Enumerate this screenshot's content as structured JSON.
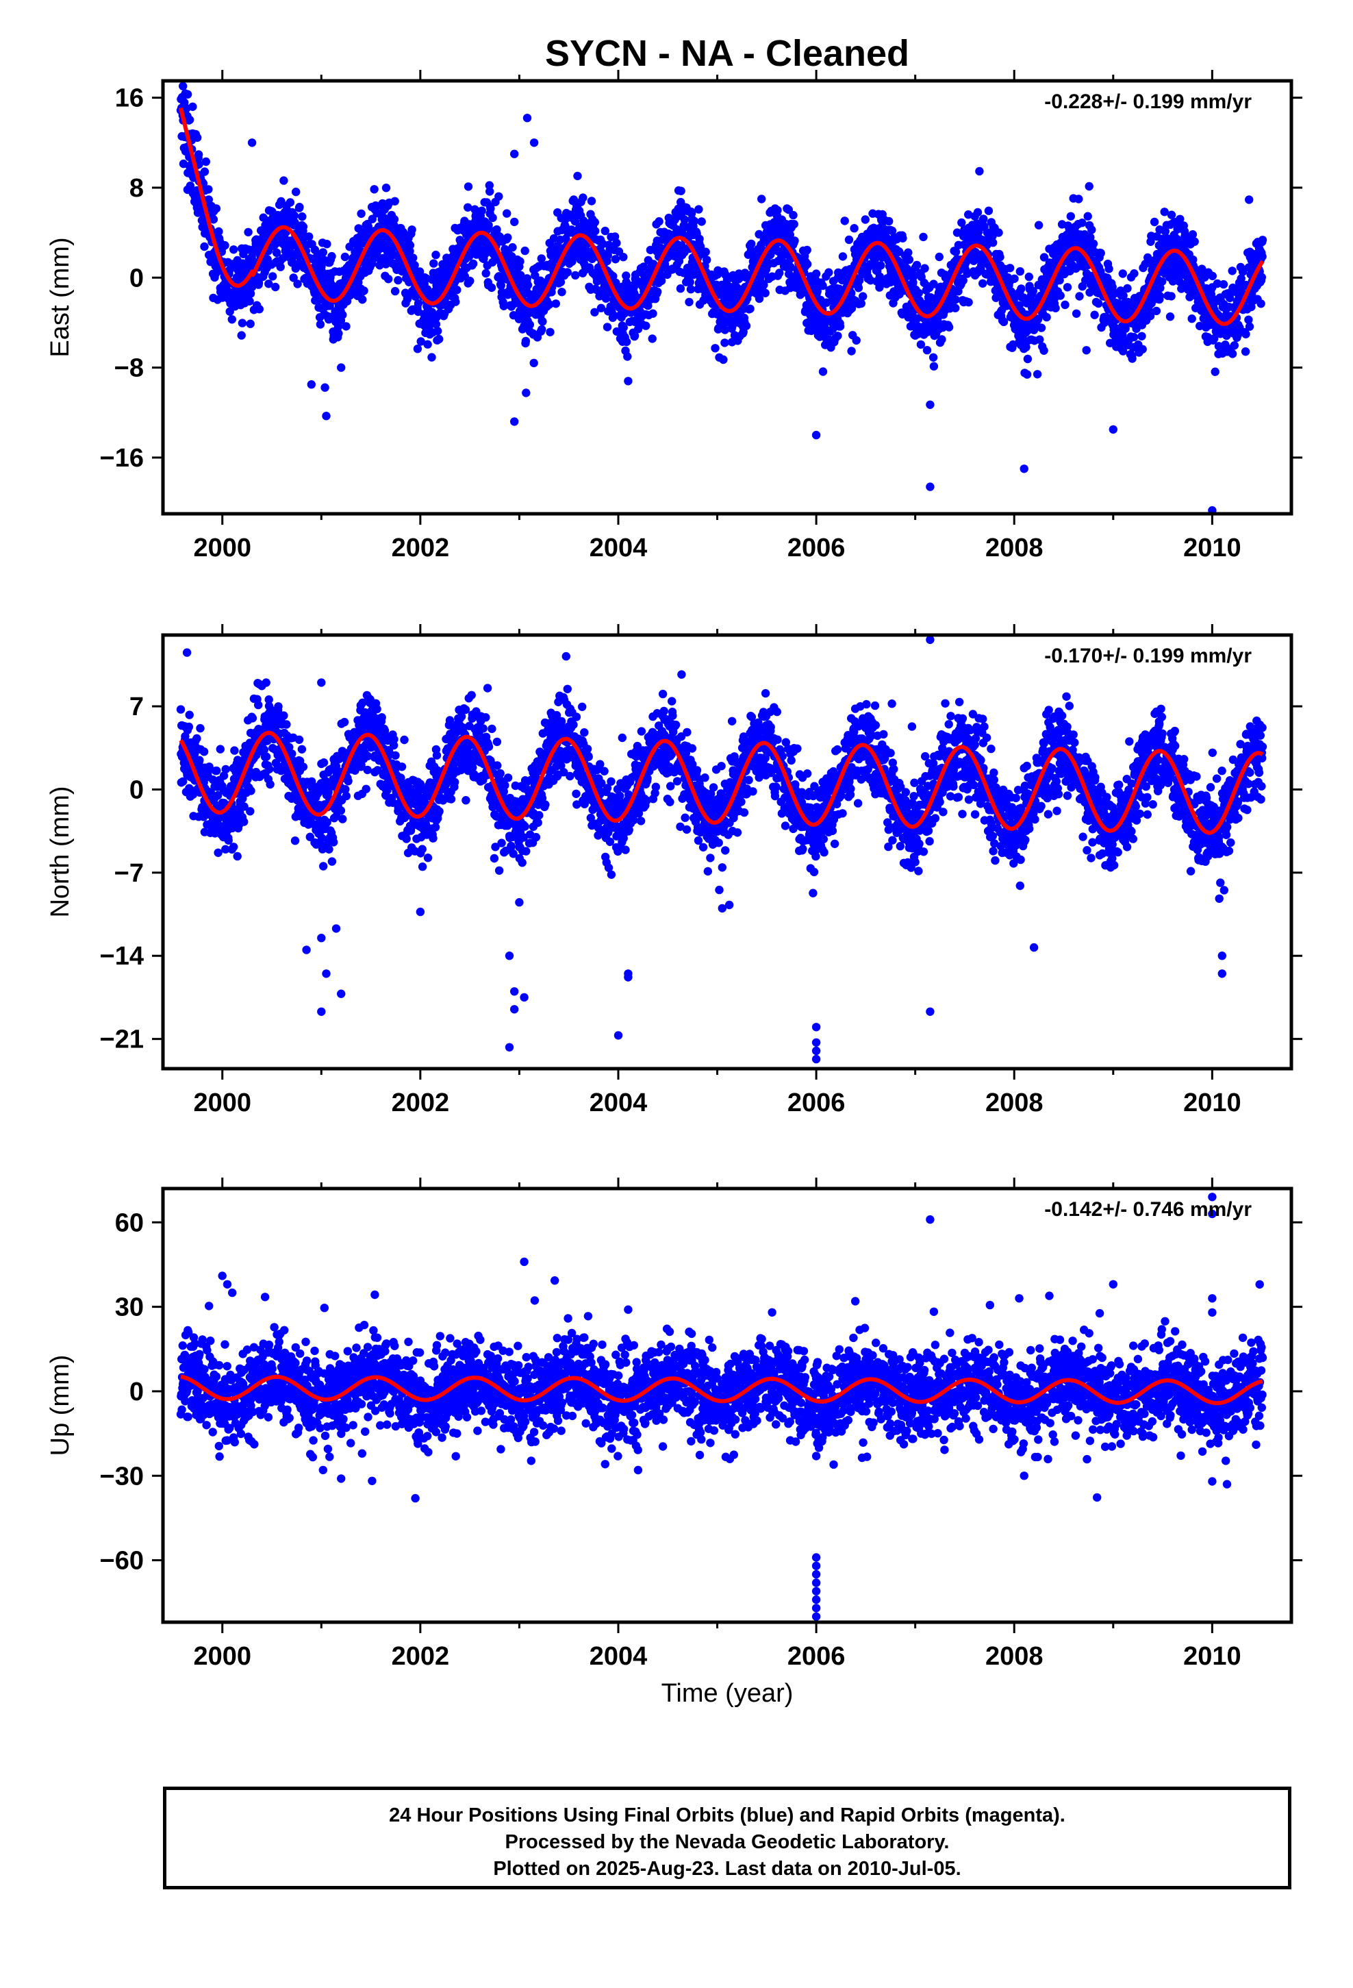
{
  "colors": {
    "data": "#0000ff",
    "model": "#ff0000",
    "axes": "#000000"
  },
  "chart_data": {
    "type": "scatter",
    "title": "SYCN  - NA - Cleaned",
    "xlabel": "Time (year)",
    "xlim": [
      1999.4,
      2010.8
    ],
    "xticks": [
      2000,
      2002,
      2004,
      2006,
      2008,
      2010
    ],
    "xtick_labels": [
      "2000",
      "2002",
      "2004",
      "2006",
      "2008",
      "2010"
    ],
    "data_range": [
      1999.58,
      2010.51
    ],
    "panels": [
      {
        "component": "east",
        "ylabel": "East (mm)",
        "ylim": [
          -21,
          17.5
        ],
        "yticks": [
          16,
          8,
          0,
          -8,
          -16
        ],
        "ytick_labels": [
          "16",
          "8",
          "0",
          "−8",
          "−16"
        ],
        "rate": "-0.228+/- 0.199 mm/yr",
        "model": {
          "offset": 0.25,
          "trend": -0.228,
          "amplitude": 3.2,
          "phase_year": 0.62,
          "early_bias": 10.5
        },
        "outliers": [
          [
            1999.65,
            16.3
          ],
          [
            1999.7,
            15.2
          ],
          [
            2000.3,
            12.0
          ],
          [
            2002.95,
            11.0
          ],
          [
            2003.08,
            14.2
          ],
          [
            2003.15,
            12.0
          ],
          [
            2001.05,
            -12.3
          ],
          [
            2000.9,
            -9.5
          ],
          [
            2001.2,
            -8.0
          ],
          [
            2002.95,
            -12.8
          ],
          [
            2004.1,
            -9.2
          ],
          [
            2006.0,
            -14.0
          ],
          [
            2007.15,
            -18.6
          ],
          [
            2008.1,
            -17.0
          ],
          [
            2010.0,
            -20.7
          ],
          [
            2009.0,
            -13.5
          ],
          [
            2007.15,
            -11.3
          ]
        ]
      },
      {
        "component": "north",
        "ylabel": "North (mm)",
        "ylim": [
          -23.5,
          13
        ],
        "yticks": [
          7,
          0,
          -7,
          -14,
          -21
        ],
        "ytick_labels": [
          "7",
          "0",
          "−7",
          "−14",
          "−21"
        ],
        "rate": "-0.170+/- 0.199 mm/yr",
        "model": {
          "offset": 0.6,
          "trend": -0.17,
          "amplitude": 3.4,
          "phase_year": 0.47,
          "early_bias": 0
        },
        "outliers": [
          [
            2007.15,
            12.6
          ],
          [
            2001.0,
            9.0
          ],
          [
            2000.85,
            -13.5
          ],
          [
            2001.0,
            -12.5
          ],
          [
            2001.15,
            -11.7
          ],
          [
            2001.05,
            -15.5
          ],
          [
            2001.0,
            -18.7
          ],
          [
            2001.2,
            -17.2
          ],
          [
            2002.0,
            -10.3
          ],
          [
            2002.9,
            -14.0
          ],
          [
            2002.95,
            -17.0
          ],
          [
            2002.95,
            -18.5
          ],
          [
            2003.05,
            -17.5
          ],
          [
            2002.9,
            -21.7
          ],
          [
            2004.0,
            -20.7
          ],
          [
            2004.1,
            -15.5
          ],
          [
            2004.1,
            -15.8
          ],
          [
            2006.0,
            -20.0
          ],
          [
            2006.0,
            -21.3
          ],
          [
            2006.0,
            -22.0
          ],
          [
            2006.0,
            -22.7
          ],
          [
            2007.15,
            -18.7
          ],
          [
            2008.2,
            -13.3
          ],
          [
            2010.1,
            -15.5
          ],
          [
            2010.1,
            -14.0
          ],
          [
            2005.05,
            -10.0
          ],
          [
            2003.0,
            -9.5
          ]
        ]
      },
      {
        "component": "up",
        "ylabel": "Up (mm)",
        "ylim": [
          -82,
          72
        ],
        "yticks": [
          60,
          30,
          0,
          -30,
          -60
        ],
        "ytick_labels": [
          "60",
          "30",
          "0",
          "−30",
          "−60"
        ],
        "rate": "-0.142+/- 0.746 mm/yr",
        "model": {
          "offset": 0.5,
          "trend": -0.142,
          "amplitude": 4.0,
          "phase_year": 0.55,
          "early_bias": 0
        },
        "outliers": [
          [
            2000.0,
            41.0
          ],
          [
            2000.05,
            38.0
          ],
          [
            2000.1,
            35.0
          ],
          [
            2003.05,
            46.0
          ],
          [
            2004.1,
            29.0
          ],
          [
            2007.15,
            61.0
          ],
          [
            2008.05,
            33.0
          ],
          [
            2009.0,
            38.0
          ],
          [
            2010.0,
            69.0
          ],
          [
            2010.0,
            63.0
          ],
          [
            2010.0,
            33.0
          ],
          [
            2010.0,
            28.0
          ],
          [
            2001.95,
            -38.0
          ],
          [
            2004.2,
            -28.0
          ],
          [
            2006.0,
            -59.0
          ],
          [
            2006.0,
            -62.0
          ],
          [
            2006.0,
            -65.0
          ],
          [
            2006.0,
            -68.0
          ],
          [
            2006.0,
            -71.0
          ],
          [
            2006.0,
            -74.0
          ],
          [
            2006.0,
            -77.0
          ],
          [
            2006.0,
            -80.0
          ],
          [
            2010.0,
            -32.0
          ],
          [
            2010.15,
            -33.0
          ],
          [
            2001.2,
            -31.0
          ],
          [
            2008.1,
            -30.0
          ],
          [
            2006.0,
            -23.0
          ]
        ]
      }
    ]
  },
  "footer": {
    "line1": "24 Hour Positions Using Final Orbits (blue) and Rapid Orbits (magenta).",
    "line2": "Processed by the Nevada Geodetic Laboratory.",
    "line3": "Plotted on 2025-Aug-23. Last data on 2010-Jul-05."
  }
}
